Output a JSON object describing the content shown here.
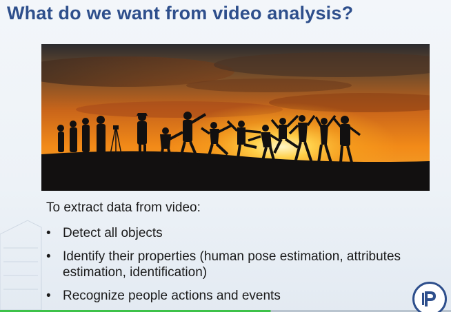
{
  "slide": {
    "title": "What do we want from video analysis?",
    "intro": "To extract data from video:",
    "bullets": [
      "Detect all objects",
      "Identify their properties (human pose estimation, attributes estimation, identification)",
      "Recognize people actions and events"
    ],
    "bullet_glyph": "•"
  },
  "photo": {
    "description_icon": "sunset-silhouette-photo"
  },
  "colors": {
    "title": "#2e4f8c",
    "text": "#1a1a1a",
    "progress": "#3ec24a",
    "logo": "#2e4f8c"
  }
}
